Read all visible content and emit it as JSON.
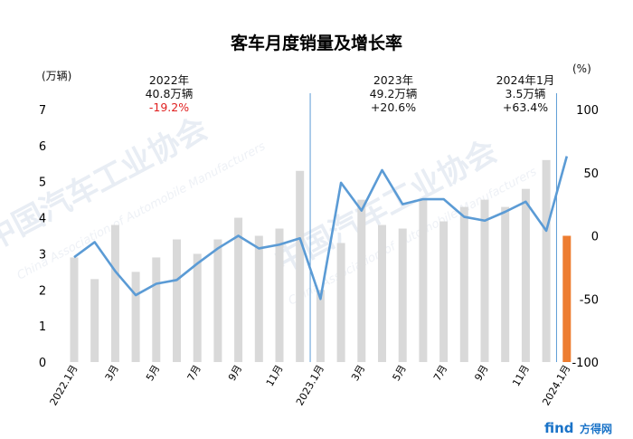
{
  "chart_data": {
    "type": "bar",
    "title": "客车月度销量及增长率",
    "left_axis_unit": "(万辆)",
    "right_axis_unit": "(%)",
    "left_ylim": [
      0,
      7
    ],
    "left_yticks": [
      "0",
      "1",
      "2",
      "3",
      "4",
      "5",
      "6",
      "7"
    ],
    "right_ylim": [
      -100,
      100
    ],
    "right_yticks": [
      "-100",
      "-50",
      "0",
      "50",
      "100"
    ],
    "categories": [
      "2022.1月",
      "2月",
      "3月",
      "4月",
      "5月",
      "6月",
      "7月",
      "8月",
      "9月",
      "10月",
      "11月",
      "12月",
      "2023.1月",
      "2月",
      "3月",
      "4月",
      "5月",
      "6月",
      "7月",
      "8月",
      "9月",
      "10月",
      "11月",
      "12月",
      "2024.1月"
    ],
    "x_tick_labels": [
      "2022.1月",
      "",
      "3月",
      "",
      "5月",
      "",
      "7月",
      "",
      "9月",
      "",
      "11月",
      "",
      "2023.1月",
      "",
      "3月",
      "",
      "5月",
      "",
      "7月",
      "",
      "9月",
      "",
      "11月",
      "",
      "2024.1月"
    ],
    "series": [
      {
        "name": "",
        "kind": "bar",
        "axis": "left",
        "values": [
          2.9,
          2.3,
          3.8,
          2.5,
          2.9,
          3.4,
          3.0,
          3.4,
          4.0,
          3.5,
          3.7,
          5.3,
          2.0,
          3.3,
          4.5,
          3.8,
          3.7,
          4.5,
          3.9,
          4.3,
          4.5,
          4.3,
          4.8,
          5.6,
          3.5
        ],
        "colors": {
          "default": "#d9d9d9",
          "highlight": "#ed7d31",
          "highlight_index": 24
        }
      },
      {
        "name": "",
        "kind": "line",
        "axis": "right",
        "values": [
          -17,
          -5,
          -28,
          -47,
          -38,
          -35,
          -22,
          -10,
          0,
          -10,
          -7,
          -2,
          -50,
          42,
          20,
          52,
          25,
          29,
          29,
          15,
          12,
          19,
          27,
          4,
          63
        ],
        "color": "#5b9bd5"
      }
    ],
    "annotations": [
      {
        "lines": [
          "2022年",
          "40.8万辆",
          "-19.2%"
        ],
        "highlight_line": 2
      },
      {
        "lines": [
          "2023年",
          "49.2万辆",
          "+20.6%"
        ]
      },
      {
        "lines": [
          "2024年1月",
          "3.5万辆",
          "+63.4%"
        ]
      }
    ],
    "grid": false,
    "legend": "none"
  },
  "footer": {
    "logo_text": "find",
    "logo_cn": "方得网"
  },
  "watermark": {
    "text": "中国汽车工业协会",
    "subtext": "China Association of Automobile Manufacturers"
  }
}
